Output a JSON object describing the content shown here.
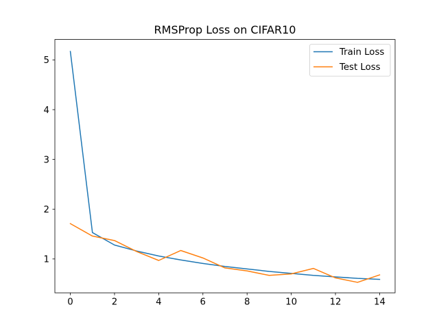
{
  "chart_data": {
    "type": "line",
    "title": "RMSProp Loss on CIFAR10",
    "xlabel": "",
    "ylabel": "",
    "x": [
      0,
      1,
      2,
      3,
      4,
      5,
      6,
      7,
      8,
      9,
      10,
      11,
      12,
      13,
      14
    ],
    "xlim": [
      -0.7,
      14.7
    ],
    "ylim": [
      0.32,
      5.41
    ],
    "xticks": [
      "0",
      "2",
      "4",
      "6",
      "8",
      "10",
      "12",
      "14"
    ],
    "yticks": [
      "1",
      "2",
      "3",
      "4",
      "5"
    ],
    "grid": false,
    "legend_position": "upper right",
    "series": [
      {
        "name": "Train Loss",
        "color": "#1f77b4",
        "values": [
          5.17,
          1.53,
          1.28,
          1.16,
          1.06,
          0.98,
          0.91,
          0.85,
          0.8,
          0.75,
          0.71,
          0.67,
          0.64,
          0.61,
          0.59
        ]
      },
      {
        "name": "Test Loss",
        "color": "#ff7f0e",
        "values": [
          1.71,
          1.46,
          1.37,
          1.15,
          0.97,
          1.17,
          1.02,
          0.82,
          0.76,
          0.67,
          0.7,
          0.81,
          0.62,
          0.53,
          0.68
        ]
      }
    ]
  }
}
